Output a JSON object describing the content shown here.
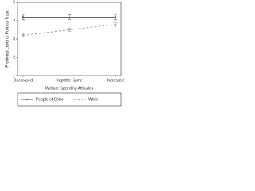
{
  "chart_data": {
    "type": "line",
    "x_label": "Welfare Spending Attitudes",
    "y_label": "Predicted Level of Political Trust",
    "categories": [
      "Decreased",
      "Kept the Same",
      "Increased"
    ],
    "series": [
      {
        "name": "People of Color",
        "color": "#555555",
        "dash": false,
        "values": [
          4.2,
          4.2,
          4.2
        ],
        "errors": [
          0.15,
          0.12,
          0.15
        ]
      },
      {
        "name": "White",
        "color": "#999999",
        "dash": true,
        "values": [
          3.2,
          3.5,
          3.8
        ],
        "errors": [
          0.1,
          0.08,
          0.1
        ]
      }
    ],
    "ylim": [
      1,
      5
    ],
    "yticks": [
      1,
      2,
      3,
      4,
      5
    ],
    "grid": false
  }
}
